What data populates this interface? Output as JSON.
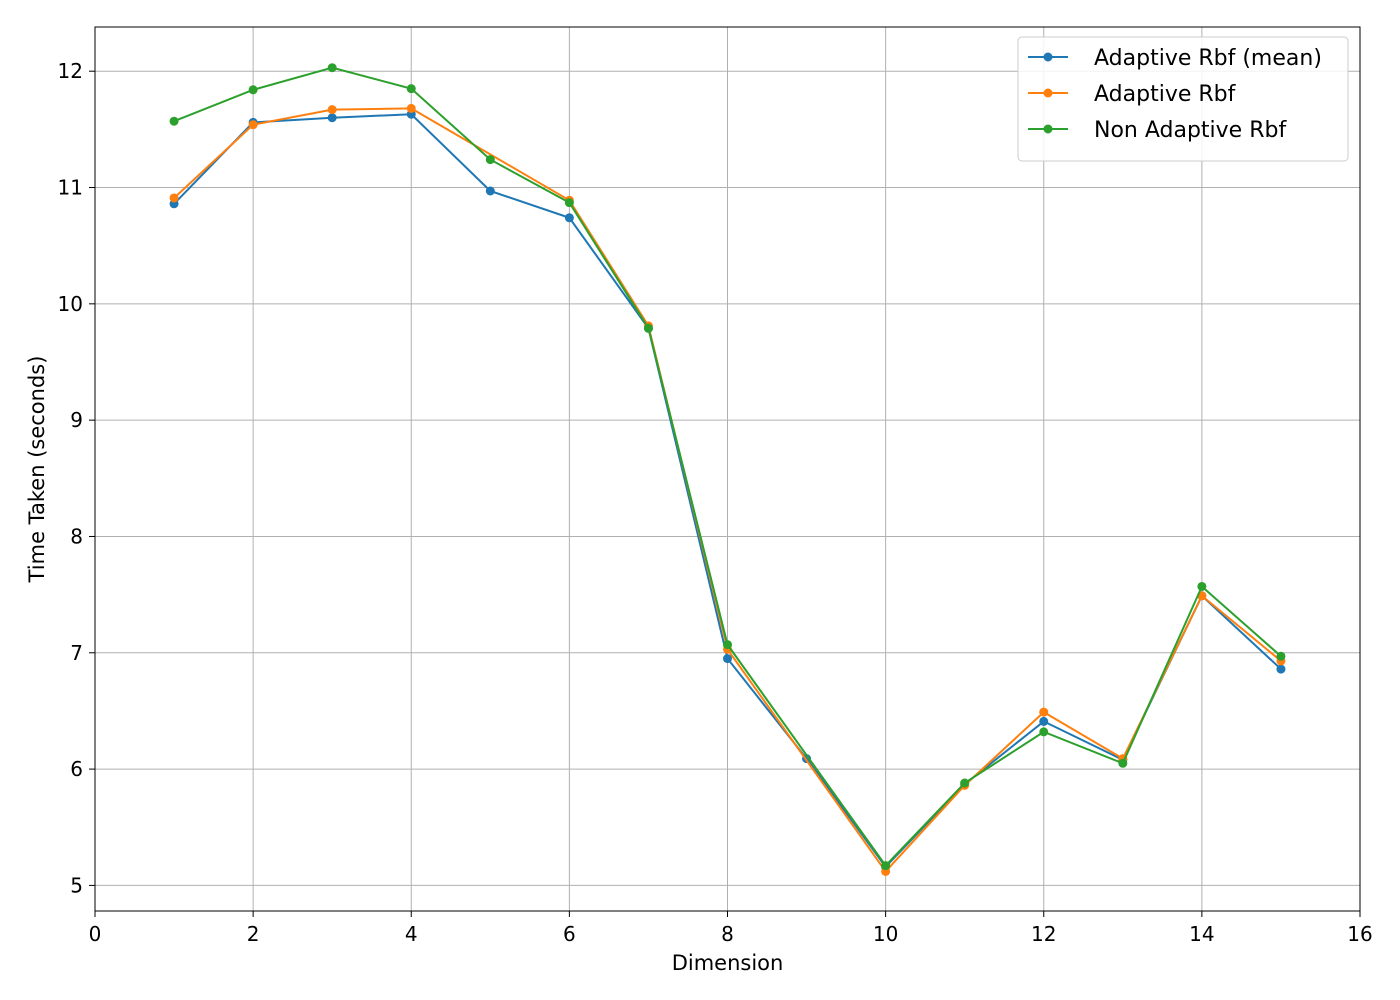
{
  "chart_data": {
    "type": "line",
    "title": "",
    "xlabel": "Dimension",
    "ylabel": "Time Taken (seconds)",
    "xlim": [
      0,
      16
    ],
    "ylim": [
      4.78,
      12.38
    ],
    "xticks": [
      0,
      2,
      4,
      6,
      8,
      10,
      12,
      14,
      16
    ],
    "yticks": [
      5,
      6,
      7,
      8,
      9,
      10,
      11,
      12
    ],
    "grid": true,
    "legend_position": "top-right",
    "series": [
      {
        "name": "Adaptive Rbf (mean)",
        "color": "#1f77b4",
        "x": [
          1,
          2,
          3,
          4,
          5,
          6,
          7,
          8,
          9,
          10,
          11,
          12,
          13,
          14,
          15
        ],
        "y": [
          10.86,
          11.56,
          11.6,
          11.63,
          10.97,
          10.74,
          9.79,
          6.95,
          6.09,
          5.16,
          5.87,
          6.41,
          6.08,
          7.49,
          6.86
        ]
      },
      {
        "name": "Adaptive Rbf",
        "color": "#ff7f0e",
        "x": [
          1,
          2,
          3,
          4,
          6,
          7,
          8,
          10,
          11,
          12,
          13,
          14,
          15
        ],
        "y": [
          10.91,
          11.54,
          11.67,
          11.68,
          10.89,
          9.81,
          7.03,
          5.12,
          5.86,
          6.49,
          6.09,
          7.49,
          6.93
        ]
      },
      {
        "name": "Non Adaptive Rbf",
        "color": "#2ca02c",
        "x": [
          1,
          2,
          3,
          4,
          5,
          6,
          7,
          8,
          10,
          11,
          12,
          13,
          14,
          15
        ],
        "y": [
          11.57,
          11.84,
          12.03,
          11.85,
          11.24,
          10.87,
          9.79,
          7.07,
          5.17,
          5.88,
          6.32,
          6.05,
          7.57,
          6.97
        ]
      }
    ]
  }
}
